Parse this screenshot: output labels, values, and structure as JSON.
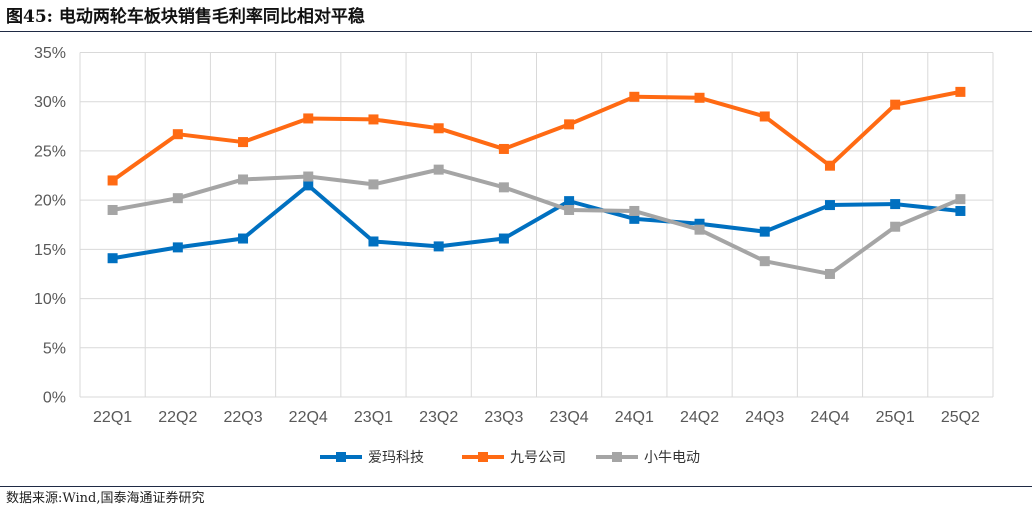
{
  "figure": {
    "title": "图45:  电动两轮车板块销售毛利率同比相对平稳",
    "source": "数据来源:Wind,国泰海通证券研究"
  },
  "chart_data": {
    "type": "line",
    "categories": [
      "22Q1",
      "22Q2",
      "22Q3",
      "22Q4",
      "23Q1",
      "23Q2",
      "23Q3",
      "23Q4",
      "24Q1",
      "24Q2",
      "24Q3",
      "24Q4",
      "25Q1",
      "25Q2"
    ],
    "ylim": [
      0,
      35
    ],
    "yticks": [
      0,
      5,
      10,
      15,
      20,
      25,
      30,
      35
    ],
    "ytick_labels": [
      "0%",
      "5%",
      "10%",
      "15%",
      "20%",
      "25%",
      "30%",
      "35%"
    ],
    "grid": true,
    "legend_position": "bottom",
    "series": [
      {
        "name": "爱玛科技",
        "color": "#0070C0",
        "values": [
          14.1,
          15.2,
          16.1,
          21.5,
          15.8,
          15.3,
          16.1,
          19.9,
          18.1,
          17.6,
          16.8,
          19.5,
          19.6,
          18.9
        ]
      },
      {
        "name": "九号公司",
        "color": "#FF6A13",
        "values": [
          22.0,
          26.7,
          25.9,
          28.3,
          28.2,
          27.3,
          25.2,
          27.7,
          30.5,
          30.4,
          28.5,
          23.5,
          29.7,
          31.0
        ]
      },
      {
        "name": "小牛电动",
        "color": "#A5A5A5",
        "values": [
          19.0,
          20.2,
          22.1,
          22.4,
          21.6,
          23.1,
          21.3,
          19.0,
          18.9,
          17.0,
          13.8,
          12.5,
          17.3,
          20.1
        ]
      }
    ]
  }
}
